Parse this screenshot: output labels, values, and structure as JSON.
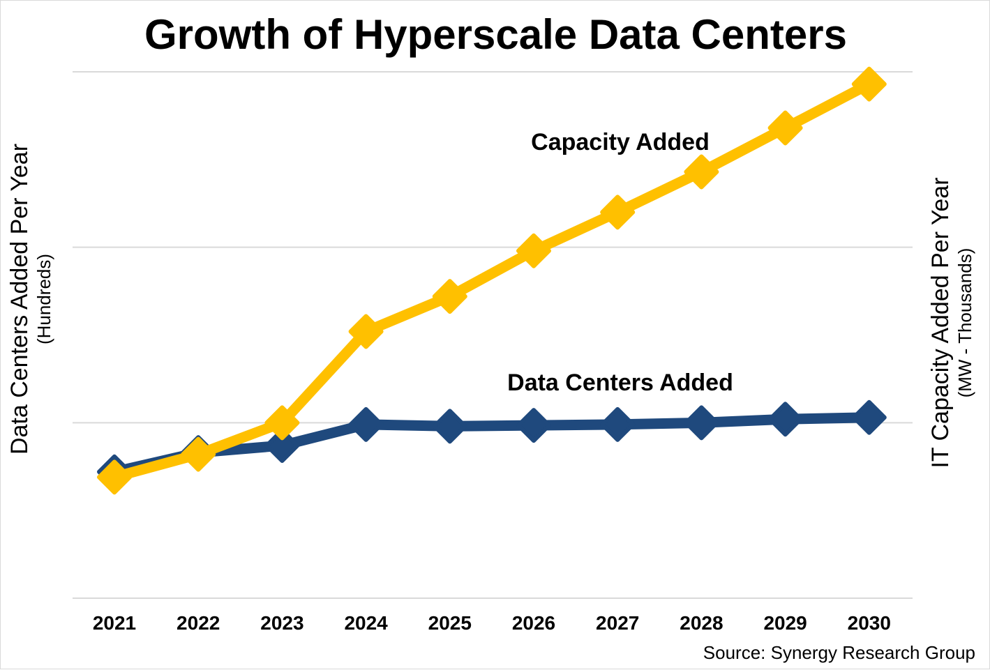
{
  "chart_data": {
    "type": "line",
    "title": "Growth of Hyperscale Data Centers",
    "ylabel_left": "Data Centers Added Per Year",
    "ylabel_left_sub": "(Hundreds)",
    "ylabel_right": "IT Capacity Added Per Year",
    "ylabel_right_sub": "(MW - Thousands)",
    "source": "Source: Synergy Research Group",
    "categories": [
      "2021",
      "2022",
      "2023",
      "2024",
      "2025",
      "2026",
      "2027",
      "2028",
      "2029",
      "2030"
    ],
    "ylim": [
      0,
      3
    ],
    "grid": true,
    "series": [
      {
        "name": "Data Centers Added",
        "color": "#1f497d",
        "values": [
          0.72,
          0.83,
          0.87,
          0.99,
          0.98,
          0.985,
          0.99,
          1.0,
          1.02,
          1.03
        ]
      },
      {
        "name": "Capacity Added",
        "color": "#ffc000",
        "values": [
          0.69,
          0.82,
          1.0,
          1.52,
          1.72,
          1.98,
          2.2,
          2.43,
          2.68,
          2.93
        ]
      }
    ]
  }
}
